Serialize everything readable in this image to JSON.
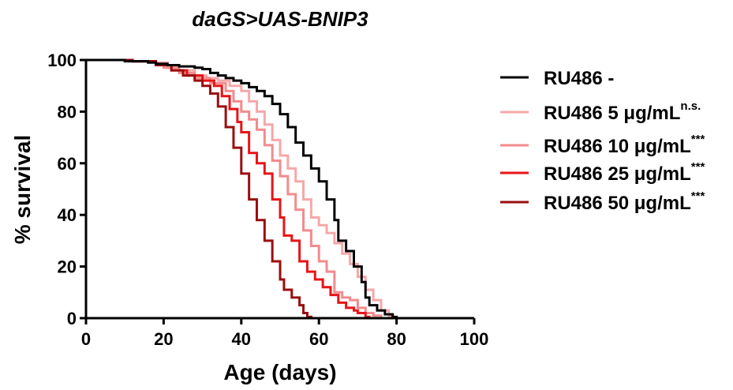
{
  "chart_data": {
    "type": "line",
    "step": true,
    "title": "daGS>UAS-BNIP3",
    "xlabel": "Age (days)",
    "ylabel": "% survival",
    "xlim": [
      0,
      100
    ],
    "ylim": [
      0,
      100
    ],
    "xticks": [
      0,
      20,
      40,
      60,
      80,
      100
    ],
    "yticks": [
      0,
      20,
      40,
      60,
      80,
      100
    ],
    "grid": false,
    "legend_position": "right",
    "series": [
      {
        "name": "RU486 -",
        "unit": "",
        "sig": "",
        "color": "#000000",
        "points": [
          [
            0,
            100
          ],
          [
            10,
            99.5
          ],
          [
            16,
            99
          ],
          [
            18,
            98.5
          ],
          [
            21,
            98
          ],
          [
            24,
            97.5
          ],
          [
            28,
            97
          ],
          [
            30,
            96.5
          ],
          [
            32,
            95
          ],
          [
            34,
            94
          ],
          [
            36,
            93
          ],
          [
            38,
            92
          ],
          [
            40,
            91
          ],
          [
            42,
            89.5
          ],
          [
            44,
            88
          ],
          [
            46,
            86
          ],
          [
            48,
            83
          ],
          [
            50,
            79
          ],
          [
            52,
            74
          ],
          [
            54,
            68
          ],
          [
            56,
            63
          ],
          [
            58,
            58
          ],
          [
            60,
            53
          ],
          [
            62,
            46
          ],
          [
            64,
            38
          ],
          [
            65,
            30
          ],
          [
            67,
            26
          ],
          [
            69,
            20
          ],
          [
            71,
            14
          ],
          [
            72,
            8
          ],
          [
            73,
            5
          ],
          [
            75,
            3
          ],
          [
            77,
            1.5
          ],
          [
            79,
            0.5
          ],
          [
            80,
            0
          ]
        ]
      },
      {
        "name": "RU486 5 ",
        "unit": "μg/mL",
        "sig": "n.s.",
        "color": "#f7a7a9",
        "points": [
          [
            0,
            100
          ],
          [
            12,
            99.5
          ],
          [
            18,
            99
          ],
          [
            21,
            97
          ],
          [
            24,
            96
          ],
          [
            28,
            94
          ],
          [
            31,
            93
          ],
          [
            34,
            92
          ],
          [
            37,
            90
          ],
          [
            40,
            88
          ],
          [
            42,
            84
          ],
          [
            44,
            80
          ],
          [
            46,
            75
          ],
          [
            48,
            69
          ],
          [
            50,
            63
          ],
          [
            52,
            58
          ],
          [
            54,
            53
          ],
          [
            56,
            46
          ],
          [
            58,
            39
          ],
          [
            60,
            36
          ],
          [
            62,
            33
          ],
          [
            64,
            29
          ],
          [
            66,
            25
          ],
          [
            68,
            21
          ],
          [
            70,
            16
          ],
          [
            72,
            11
          ],
          [
            74,
            7
          ],
          [
            76,
            3
          ],
          [
            78,
            1
          ],
          [
            79,
            0
          ]
        ]
      },
      {
        "name": "RU486 10 ",
        "unit": "μg/mL",
        "sig": "***",
        "color": "#f38b8d",
        "points": [
          [
            0,
            100
          ],
          [
            12,
            99.5
          ],
          [
            18,
            98.5
          ],
          [
            20,
            97
          ],
          [
            24,
            95
          ],
          [
            28,
            93
          ],
          [
            32,
            91
          ],
          [
            36,
            88
          ],
          [
            38,
            84
          ],
          [
            40,
            80
          ],
          [
            42,
            77
          ],
          [
            44,
            73
          ],
          [
            46,
            67
          ],
          [
            48,
            61
          ],
          [
            50,
            55
          ],
          [
            52,
            48
          ],
          [
            54,
            42
          ],
          [
            56,
            34
          ],
          [
            58,
            28
          ],
          [
            60,
            22
          ],
          [
            62,
            18
          ],
          [
            64,
            10
          ],
          [
            66,
            8
          ],
          [
            68,
            7
          ],
          [
            70,
            4
          ],
          [
            72,
            2
          ],
          [
            74,
            1
          ],
          [
            76,
            0
          ]
        ]
      },
      {
        "name": "RU486 25 ",
        "unit": "μg/mL",
        "sig": "***",
        "color": "#e81417",
        "points": [
          [
            0,
            100
          ],
          [
            12,
            99.5
          ],
          [
            18,
            98
          ],
          [
            22,
            96
          ],
          [
            26,
            94
          ],
          [
            30,
            92
          ],
          [
            33,
            90
          ],
          [
            35,
            86
          ],
          [
            37,
            81
          ],
          [
            39,
            76
          ],
          [
            40,
            72
          ],
          [
            42,
            64
          ],
          [
            44,
            60
          ],
          [
            46,
            56
          ],
          [
            48,
            46
          ],
          [
            50,
            39
          ],
          [
            51,
            32
          ],
          [
            53,
            30
          ],
          [
            55,
            22
          ],
          [
            57,
            18
          ],
          [
            59,
            15
          ],
          [
            61,
            12
          ],
          [
            63,
            9
          ],
          [
            65,
            6
          ],
          [
            67,
            4
          ],
          [
            69,
            3
          ],
          [
            70,
            2
          ],
          [
            72,
            0.5
          ],
          [
            73,
            0
          ]
        ]
      },
      {
        "name": "RU486 50 ",
        "unit": "μg/mL",
        "sig": "***",
        "color": "#9b0d0f",
        "points": [
          [
            0,
            100
          ],
          [
            12,
            99.5
          ],
          [
            18,
            98
          ],
          [
            22,
            96
          ],
          [
            25,
            94
          ],
          [
            28,
            92
          ],
          [
            30,
            90
          ],
          [
            32,
            87
          ],
          [
            34,
            82
          ],
          [
            36,
            74
          ],
          [
            38,
            66
          ],
          [
            40,
            56
          ],
          [
            42,
            46
          ],
          [
            44,
            38
          ],
          [
            46,
            30
          ],
          [
            48,
            22
          ],
          [
            50,
            15
          ],
          [
            51,
            11
          ],
          [
            53,
            8
          ],
          [
            55,
            5
          ],
          [
            56,
            2
          ],
          [
            57,
            0.5
          ],
          [
            58,
            0
          ]
        ]
      }
    ]
  }
}
